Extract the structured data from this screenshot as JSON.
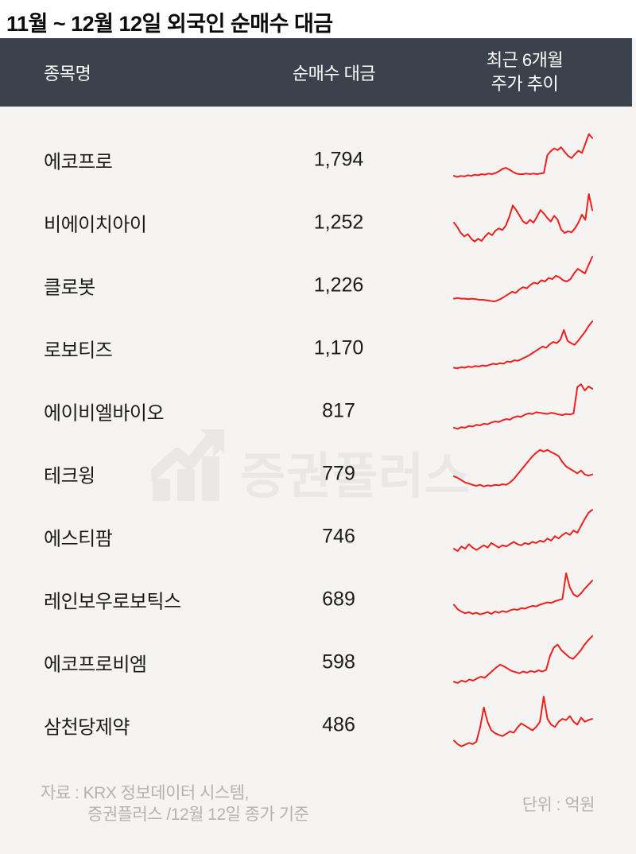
{
  "title": "11월 ~ 12월 12일 외국인 순매수 대금",
  "table": {
    "headers": [
      "종목명",
      "순매수 대금",
      "최근 6개월",
      "주가 추이"
    ]
  },
  "watermark": {
    "text": "증권플러스",
    "icon": "chart-growth-icon"
  },
  "footer": {
    "source_line1": "자료 : KRX 정보데이터 시스템,",
    "source_line2": "증권플러스 /12월 12일 종가 기준",
    "unit_label": "단위 : 억원"
  },
  "colors": {
    "page_bg": "#ffffff",
    "body_bg": "#f5f4f2",
    "header_bar": "#3b424b",
    "header_text": "#ffffff",
    "text": "#1b1b1b",
    "sparkline": "#ef1f1c",
    "footer_text": "#b4b3b1",
    "watermark": "#e9e8e5"
  },
  "chart_data": {
    "type": "table",
    "title": "11월 ~ 12월 12일 외국인 순매수 대금",
    "unit": "억원",
    "columns": [
      "종목명",
      "순매수 대금",
      "최근 6개월 주가 추이"
    ],
    "sparkline_type": "line",
    "sparkline_scale": "normalized 0-100, no axes shown",
    "rows": [
      {
        "name": "에코프로",
        "value": 1794,
        "value_text": "1,794",
        "sparkline": [
          22,
          20,
          22,
          21,
          23,
          22,
          24,
          23,
          25,
          24,
          26,
          25,
          27,
          30,
          34,
          36,
          33,
          29,
          26,
          25,
          25,
          26,
          25,
          26,
          25,
          26,
          27,
          58,
          65,
          70,
          67,
          72,
          64,
          57,
          53,
          60,
          66,
          62,
          78,
          95,
          88
        ]
      },
      {
        "name": "비에이치아이",
        "value": 1252,
        "value_text": "1,252",
        "sparkline": [
          50,
          42,
          32,
          26,
          30,
          22,
          17,
          22,
          18,
          26,
          32,
          28,
          36,
          40,
          37,
          45,
          60,
          80,
          72,
          62,
          52,
          48,
          55,
          50,
          60,
          72,
          66,
          58,
          52,
          62,
          55,
          38,
          32,
          35,
          33,
          40,
          50,
          64,
          55,
          100,
          72
        ]
      },
      {
        "name": "클로봇",
        "value": 1226,
        "value_text": "1,226",
        "sparkline": [
          27,
          28,
          27,
          27,
          26,
          27,
          26,
          25,
          25,
          24,
          23,
          22,
          24,
          27,
          31,
          35,
          39,
          37,
          43,
          47,
          45,
          51,
          55,
          53,
          59,
          57,
          63,
          61,
          67,
          64,
          59,
          57,
          61,
          71,
          79,
          75,
          71,
          86,
          100
        ]
      },
      {
        "name": "로보티즈",
        "value": 1170,
        "value_text": "1,170",
        "sparkline": [
          16,
          15,
          17,
          16,
          18,
          17,
          19,
          18,
          20,
          19,
          21,
          23,
          22,
          24,
          23,
          27,
          26,
          29,
          28,
          31,
          34,
          37,
          41,
          45,
          49,
          53,
          51,
          57,
          61,
          59,
          65,
          82,
          63,
          59,
          56,
          63,
          71,
          79,
          89,
          97
        ]
      },
      {
        "name": "에이비엘바이오",
        "value": 817,
        "value_text": "817",
        "sparkline": [
          21,
          19,
          22,
          21,
          24,
          23,
          26,
          25,
          28,
          27,
          30,
          32,
          31,
          34,
          36,
          35,
          39,
          41,
          40,
          44,
          46,
          45,
          48,
          47,
          46,
          45,
          47,
          46,
          44,
          43,
          45,
          44,
          46,
          92,
          97,
          86,
          93,
          89
        ]
      },
      {
        "name": "테크윙",
        "value": 779,
        "value_text": "779",
        "sparkline": [
          46,
          43,
          39,
          35,
          33,
          31,
          29,
          31,
          28,
          30,
          29,
          31,
          30,
          32,
          31,
          35,
          41,
          49,
          57,
          65,
          73,
          81,
          87,
          92,
          89,
          92,
          88,
          85,
          81,
          71,
          63,
          59,
          55,
          51,
          56,
          49,
          47,
          49
        ]
      },
      {
        "name": "에스티팜",
        "value": 746,
        "value_text": "746",
        "sparkline": [
          29,
          25,
          33,
          29,
          37,
          31,
          27,
          31,
          35,
          31,
          39,
          35,
          31,
          35,
          33,
          37,
          41,
          37,
          35,
          39,
          37,
          41,
          39,
          43,
          41,
          47,
          43,
          51,
          47,
          53,
          57,
          53,
          61,
          57,
          69,
          81,
          92,
          97
        ]
      },
      {
        "name": "레인보우로보틱스",
        "value": 689,
        "value_text": "689",
        "sparkline": [
          41,
          33,
          29,
          26,
          28,
          25,
          27,
          24,
          26,
          28,
          25,
          29,
          27,
          30,
          28,
          31,
          33,
          32,
          35,
          34,
          37,
          39,
          38,
          41,
          43,
          45,
          44,
          47,
          49,
          51,
          96,
          71,
          59,
          55,
          61,
          69,
          76,
          83
        ]
      },
      {
        "name": "에코프로비엠",
        "value": 598,
        "value_text": "598",
        "sparkline": [
          16,
          14,
          18,
          16,
          20,
          18,
          22,
          25,
          23,
          29,
          35,
          41,
          46,
          43,
          39,
          35,
          33,
          31,
          34,
          32,
          35,
          33,
          36,
          34,
          37,
          61,
          76,
          81,
          71,
          65,
          59,
          56,
          63,
          71,
          81,
          89,
          96
        ]
      },
      {
        "name": "삼천당제약",
        "value": 486,
        "value_text": "486",
        "sparkline": [
          23,
          17,
          13,
          16,
          19,
          17,
          21,
          46,
          81,
          56,
          41,
          36,
          33,
          31,
          35,
          39,
          37,
          46,
          53,
          49,
          45,
          41,
          47,
          56,
          100,
          61,
          51,
          47,
          56,
          61,
          59,
          66,
          56,
          51,
          63,
          56,
          59,
          61
        ]
      }
    ]
  }
}
